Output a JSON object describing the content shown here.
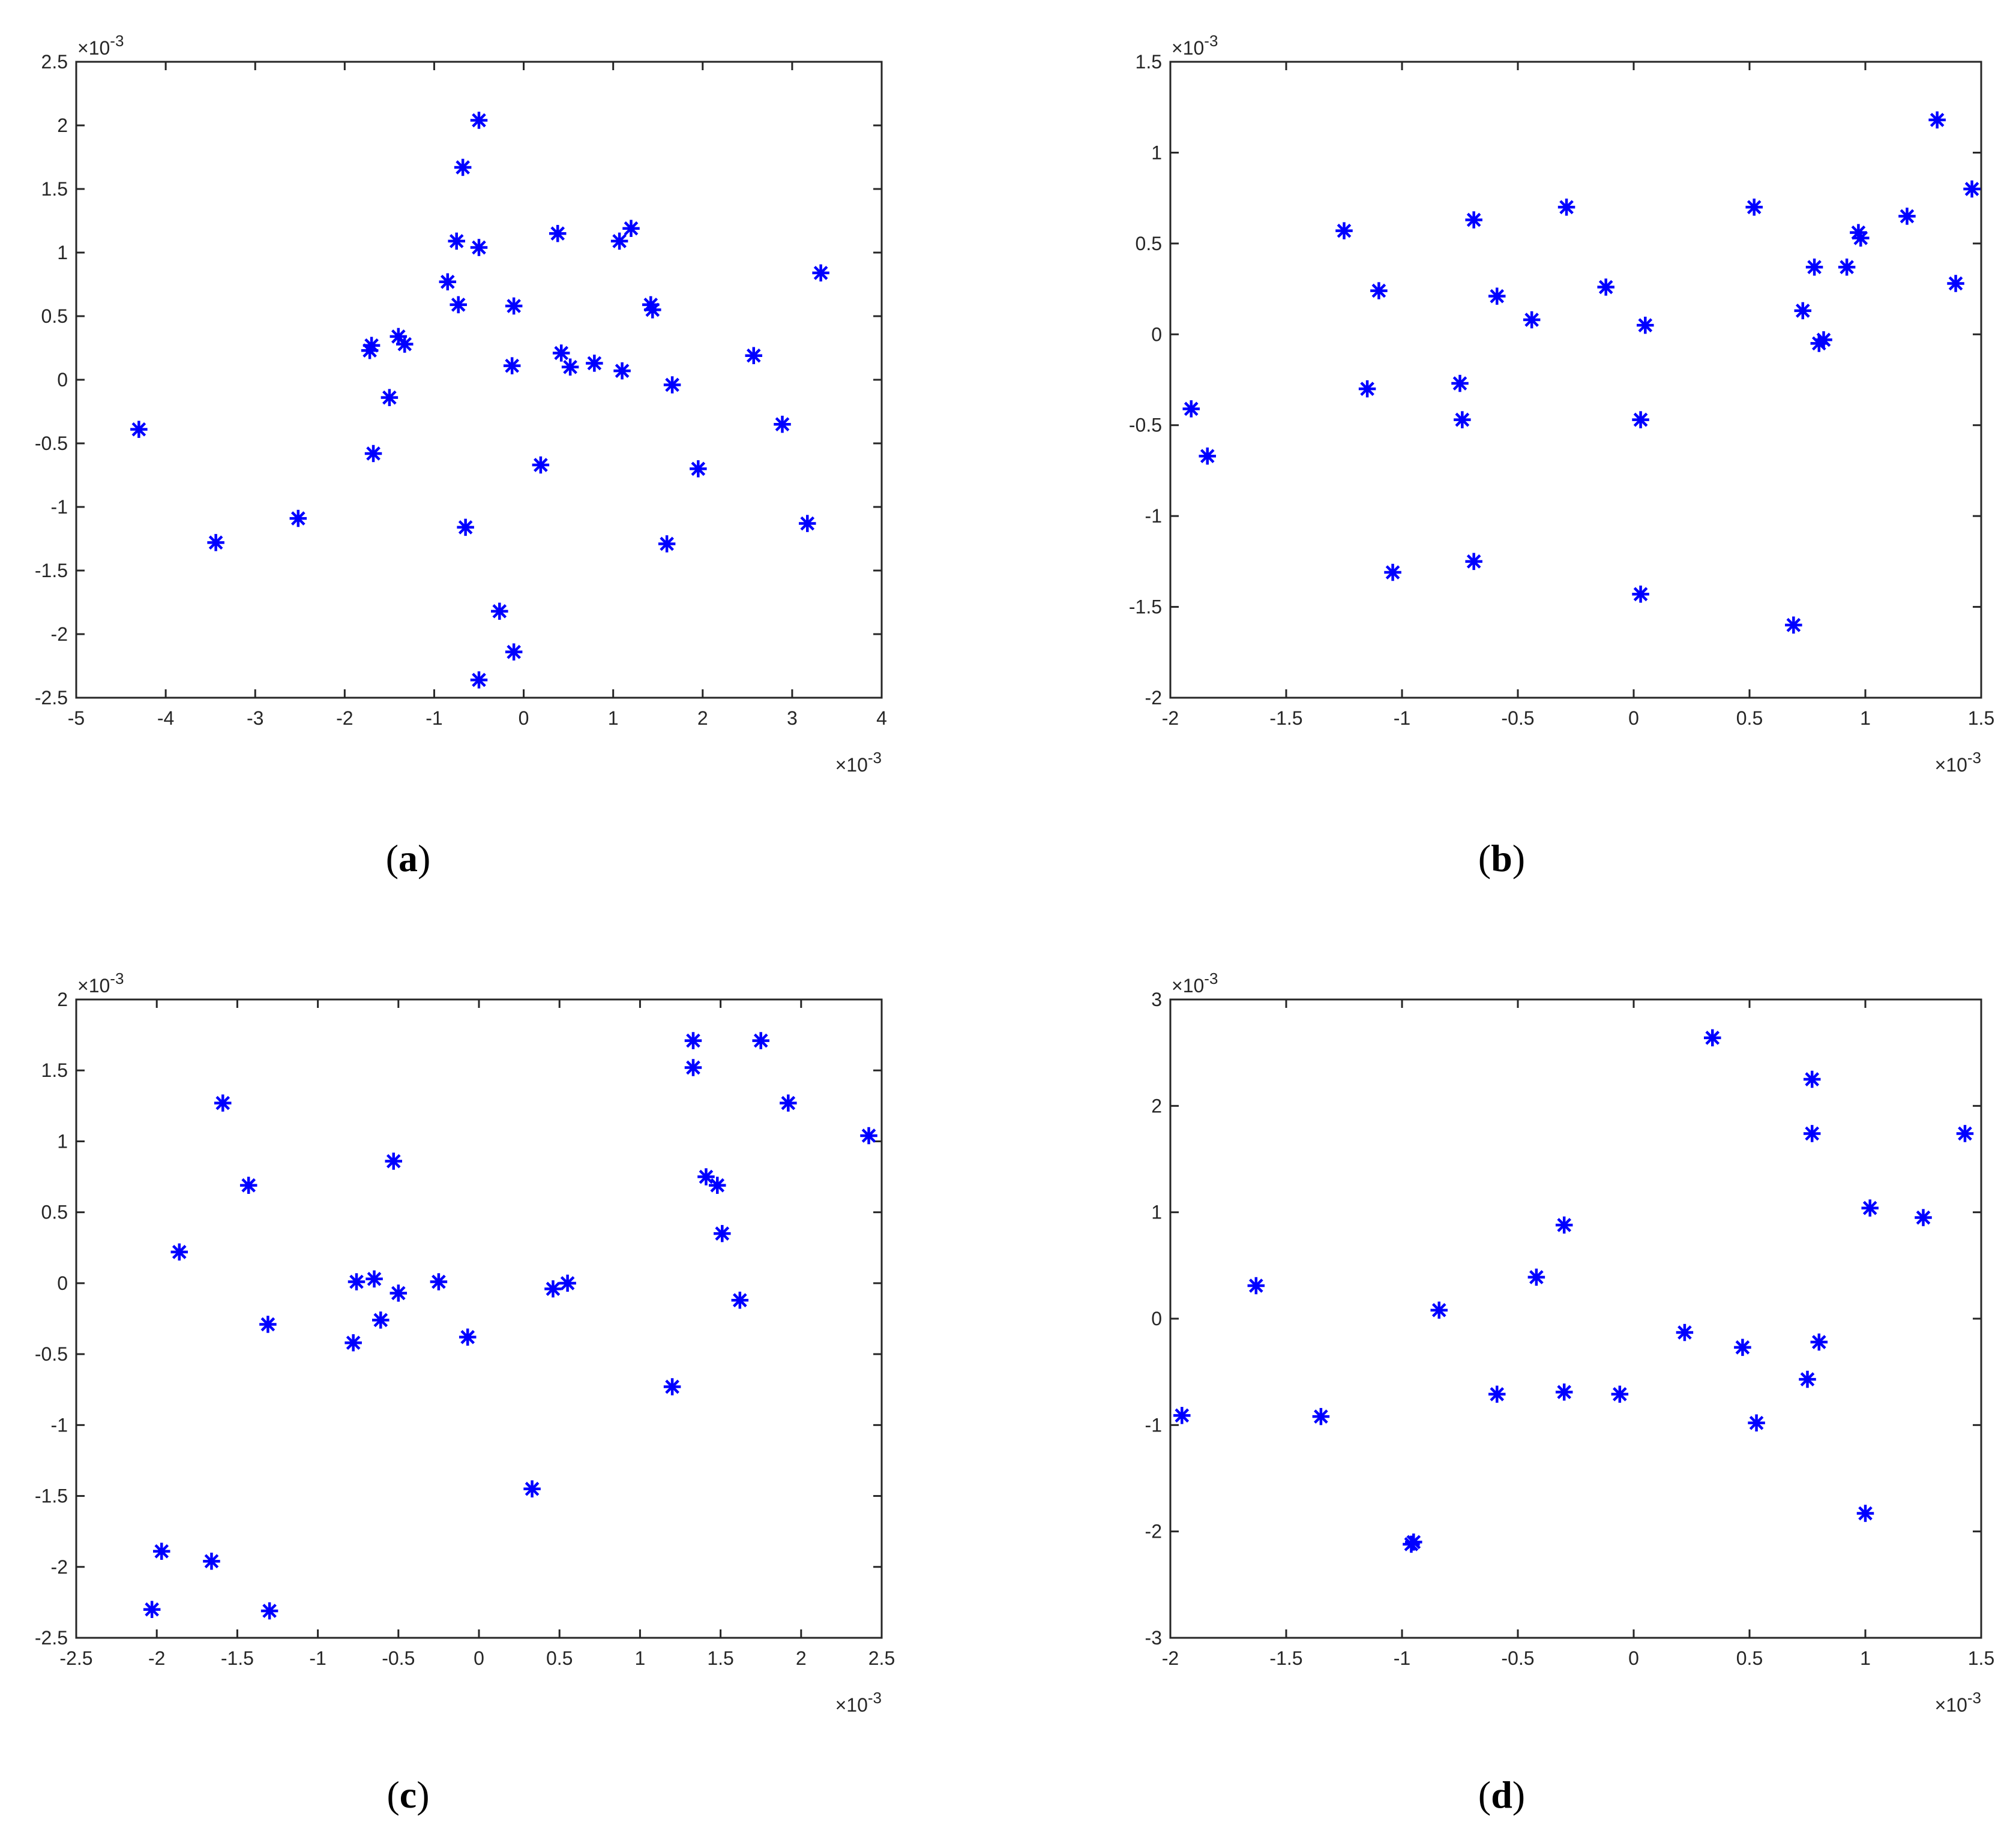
{
  "chart_data": [
    {
      "type": "scatter",
      "panel_label": "(a)",
      "x_exponent": "×10-3",
      "y_exponent": "×10-3",
      "xlim": [
        -5,
        4
      ],
      "ylim": [
        -2.5,
        2.5
      ],
      "xticks": [
        -5,
        -4,
        -3,
        -2,
        -1,
        0,
        1,
        2,
        3,
        4
      ],
      "yticks": [
        -2.5,
        -2,
        -1.5,
        -1,
        -0.5,
        0,
        0.5,
        1,
        1.5,
        2,
        2.5
      ],
      "xtick_labels": [
        "-5",
        "-4",
        "-3",
        "-2",
        "-1",
        "0",
        "1",
        "2",
        "3",
        "4"
      ],
      "ytick_labels": [
        "-2.5",
        "-2",
        "-1.5",
        "-1",
        "-0.5",
        "0",
        "0.5",
        "1",
        "1.5",
        "2",
        "2.5"
      ],
      "grid": false,
      "marker": "*",
      "color": "#0000ff",
      "points": [
        [
          -4.3,
          -0.39
        ],
        [
          -3.44,
          -1.28
        ],
        [
          -2.52,
          -1.09
        ],
        [
          -1.72,
          0.23
        ],
        [
          -1.7,
          0.27
        ],
        [
          -1.68,
          -0.58
        ],
        [
          -1.5,
          -0.14
        ],
        [
          -1.4,
          0.34
        ],
        [
          -1.33,
          0.28
        ],
        [
          -0.85,
          0.77
        ],
        [
          -0.75,
          1.09
        ],
        [
          -0.73,
          0.59
        ],
        [
          -0.68,
          1.67
        ],
        [
          -0.65,
          -1.16
        ],
        [
          -0.5,
          2.04
        ],
        [
          -0.5,
          1.04
        ],
        [
          -0.5,
          -2.36
        ],
        [
          -0.27,
          -1.82
        ],
        [
          -0.13,
          0.11
        ],
        [
          -0.11,
          -2.14
        ],
        [
          -0.11,
          0.58
        ],
        [
          0.19,
          -0.67
        ],
        [
          0.38,
          1.15
        ],
        [
          0.42,
          0.21
        ],
        [
          0.52,
          0.1
        ],
        [
          0.79,
          0.13
        ],
        [
          1.07,
          1.09
        ],
        [
          1.1,
          0.07
        ],
        [
          1.2,
          1.19
        ],
        [
          1.42,
          0.59
        ],
        [
          1.44,
          0.55
        ],
        [
          1.6,
          -1.29
        ],
        [
          1.66,
          -0.04
        ],
        [
          1.95,
          -0.7
        ],
        [
          2.57,
          0.19
        ],
        [
          2.89,
          -0.35
        ],
        [
          3.17,
          -1.13
        ],
        [
          3.32,
          0.84
        ]
      ]
    },
    {
      "type": "scatter",
      "panel_label": "(b)",
      "x_exponent": "×10-3",
      "y_exponent": "×10-3",
      "xlim": [
        -2,
        1.5
      ],
      "ylim": [
        -2,
        1.5
      ],
      "xticks": [
        -2,
        -1.5,
        -1,
        -0.5,
        0,
        0.5,
        1,
        1.5
      ],
      "yticks": [
        -2,
        -1.5,
        -1,
        -0.5,
        0,
        0.5,
        1,
        1.5
      ],
      "xtick_labels": [
        "-2",
        "-1.5",
        "-1",
        "-0.5",
        "0",
        "0.5",
        "1",
        "1.5"
      ],
      "ytick_labels": [
        "-2",
        "-1.5",
        "-1",
        "-0.5",
        "0",
        "0.5",
        "1",
        "1.5"
      ],
      "grid": false,
      "marker": "*",
      "color": "#0000ff",
      "points": [
        [
          -1.91,
          -0.41
        ],
        [
          -1.84,
          -0.67
        ],
        [
          -1.25,
          0.57
        ],
        [
          -1.15,
          -0.3
        ],
        [
          -1.1,
          0.24
        ],
        [
          -1.04,
          -1.31
        ],
        [
          -0.75,
          -0.27
        ],
        [
          -0.74,
          -0.47
        ],
        [
          -0.69,
          0.63
        ],
        [
          -0.69,
          -1.25
        ],
        [
          -0.59,
          0.21
        ],
        [
          -0.44,
          0.08
        ],
        [
          -0.29,
          0.7
        ],
        [
          -0.12,
          0.26
        ],
        [
          0.03,
          -0.47
        ],
        [
          0.03,
          -1.43
        ],
        [
          0.05,
          0.05
        ],
        [
          0.52,
          0.7
        ],
        [
          0.69,
          -1.6
        ],
        [
          0.73,
          0.13
        ],
        [
          0.78,
          0.37
        ],
        [
          0.8,
          -0.05
        ],
        [
          0.82,
          -0.03
        ],
        [
          0.92,
          0.37
        ],
        [
          0.97,
          0.56
        ],
        [
          0.98,
          0.53
        ],
        [
          1.18,
          0.65
        ],
        [
          1.31,
          1.18
        ],
        [
          1.39,
          0.28
        ],
        [
          1.46,
          0.8
        ]
      ]
    },
    {
      "type": "scatter",
      "panel_label": "(c)",
      "x_exponent": "×10-3",
      "y_exponent": "×10-3",
      "xlim": [
        -2.5,
        2.5
      ],
      "ylim": [
        -2.5,
        2
      ],
      "xticks": [
        -2.5,
        -2,
        -1.5,
        -1,
        -0.5,
        0,
        0.5,
        1,
        1.5,
        2,
        2.5
      ],
      "yticks": [
        -2.5,
        -2,
        -1.5,
        -1,
        -0.5,
        0,
        0.5,
        1,
        1.5,
        2
      ],
      "xtick_labels": [
        "-2.5",
        "-2",
        "-1.5",
        "-1",
        "-0.5",
        "0",
        "0.5",
        "1",
        "1.5",
        "2",
        "2.5"
      ],
      "ytick_labels": [
        "-2.5",
        "-2",
        "-1.5",
        "-1",
        "-0.5",
        "0",
        "0.5",
        "1",
        "1.5",
        "2"
      ],
      "grid": false,
      "marker": "*",
      "color": "#0000ff",
      "points": [
        [
          -2.03,
          -2.3
        ],
        [
          -1.97,
          -1.89
        ],
        [
          -1.86,
          0.22
        ],
        [
          -1.66,
          -1.96
        ],
        [
          -1.59,
          1.27
        ],
        [
          -1.43,
          0.69
        ],
        [
          -1.31,
          -0.29
        ],
        [
          -1.3,
          -2.31
        ],
        [
          -0.78,
          -0.42
        ],
        [
          -0.76,
          0.01
        ],
        [
          -0.65,
          0.03
        ],
        [
          -0.61,
          -0.26
        ],
        [
          -0.53,
          0.86
        ],
        [
          -0.5,
          -0.07
        ],
        [
          -0.25,
          0.01
        ],
        [
          -0.07,
          -0.38
        ],
        [
          0.33,
          -1.45
        ],
        [
          0.46,
          -0.04
        ],
        [
          0.55,
          0.0
        ],
        [
          1.2,
          -0.73
        ],
        [
          1.33,
          1.71
        ],
        [
          1.33,
          1.52
        ],
        [
          1.41,
          0.75
        ],
        [
          1.48,
          0.69
        ],
        [
          1.51,
          0.35
        ],
        [
          1.62,
          -0.12
        ],
        [
          1.75,
          1.71
        ],
        [
          1.92,
          1.27
        ],
        [
          2.42,
          1.04
        ]
      ]
    },
    {
      "type": "scatter",
      "panel_label": "(d)",
      "x_exponent": "×10-3",
      "y_exponent": "×10-3",
      "xlim": [
        -2,
        1.5
      ],
      "ylim": [
        -3,
        3
      ],
      "xticks": [
        -2,
        -1.5,
        -1,
        -0.5,
        0,
        0.5,
        1,
        1.5
      ],
      "yticks": [
        -3,
        -2,
        -1,
        0,
        1,
        2,
        3
      ],
      "xtick_labels": [
        "-2",
        "-1.5",
        "-1",
        "-0.5",
        "0",
        "0.5",
        "1",
        "1.5"
      ],
      "ytick_labels": [
        "-3",
        "-2",
        "-1",
        "0",
        "1",
        "2",
        "3"
      ],
      "grid": false,
      "marker": "*",
      "color": "#0000ff",
      "points": [
        [
          -1.95,
          -0.91
        ],
        [
          -1.63,
          0.31
        ],
        [
          -1.35,
          -0.92
        ],
        [
          -0.96,
          -2.12
        ],
        [
          -0.95,
          -2.1
        ],
        [
          -0.84,
          0.08
        ],
        [
          -0.59,
          -0.71
        ],
        [
          -0.42,
          0.39
        ],
        [
          -0.3,
          0.88
        ],
        [
          -0.3,
          -0.69
        ],
        [
          -0.06,
          -0.71
        ],
        [
          0.22,
          -0.13
        ],
        [
          0.34,
          2.64
        ],
        [
          0.47,
          -0.27
        ],
        [
          0.53,
          -0.98
        ],
        [
          0.75,
          -0.57
        ],
        [
          0.77,
          2.25
        ],
        [
          0.77,
          1.74
        ],
        [
          0.8,
          -0.22
        ],
        [
          1.0,
          -1.83
        ],
        [
          1.02,
          1.04
        ],
        [
          1.25,
          0.95
        ],
        [
          1.43,
          1.74
        ]
      ]
    }
  ]
}
